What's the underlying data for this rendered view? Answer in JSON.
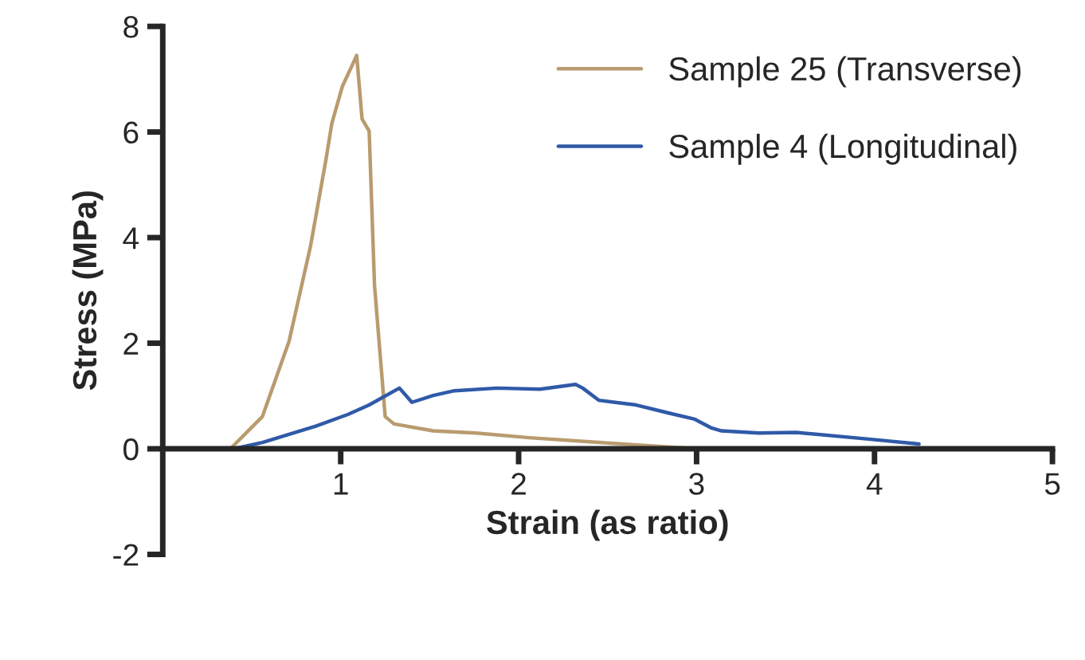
{
  "chart_data": {
    "type": "line",
    "xlabel": "Strain (as ratio)",
    "ylabel": "Stress (MPa)",
    "xlim": [
      0,
      5
    ],
    "xticks": [
      1,
      2,
      3,
      4,
      5
    ],
    "ylim": [
      -2,
      8
    ],
    "yticks": [
      -2,
      0,
      2,
      4,
      6,
      8
    ],
    "grid": false,
    "legend": "top right",
    "marker": "none",
    "line_style": "solid",
    "series": [
      {
        "name": "Sample 25 (Transverse)",
        "color": "#b89b6e",
        "x": [
          0,
          0.38,
          0.56,
          0.71,
          0.83,
          0.92,
          0.95,
          1.01,
          1.06,
          1.09,
          1.12,
          1.16,
          1.19,
          1.25,
          1.3,
          1.52,
          1.76,
          2.06,
          2.45,
          2.96,
          3.5,
          4.25
        ],
        "values": [
          0,
          0,
          0.61,
          2.04,
          3.83,
          5.53,
          6.16,
          6.87,
          7.23,
          7.45,
          6.25,
          6.02,
          3.1,
          0.61,
          0.47,
          0.34,
          0.3,
          0.21,
          0.12,
          0.01,
          0,
          0
        ]
      },
      {
        "name": "Sample 4 (Longitudinal)",
        "color": "#2f5aa8",
        "x": [
          0,
          0.4,
          0.56,
          0.86,
          1.04,
          1.16,
          1.33,
          1.4,
          1.52,
          1.64,
          1.88,
          2.12,
          2.32,
          2.36,
          2.45,
          2.66,
          2.84,
          2.99,
          3.08,
          3.14,
          3.35,
          3.56,
          3.98,
          4.25
        ],
        "values": [
          0,
          0,
          0.12,
          0.43,
          0.65,
          0.83,
          1.15,
          0.88,
          1.01,
          1.1,
          1.15,
          1.13,
          1.22,
          1.15,
          0.92,
          0.83,
          0.68,
          0.56,
          0.4,
          0.34,
          0.3,
          0.31,
          0.18,
          0.09
        ]
      }
    ]
  }
}
